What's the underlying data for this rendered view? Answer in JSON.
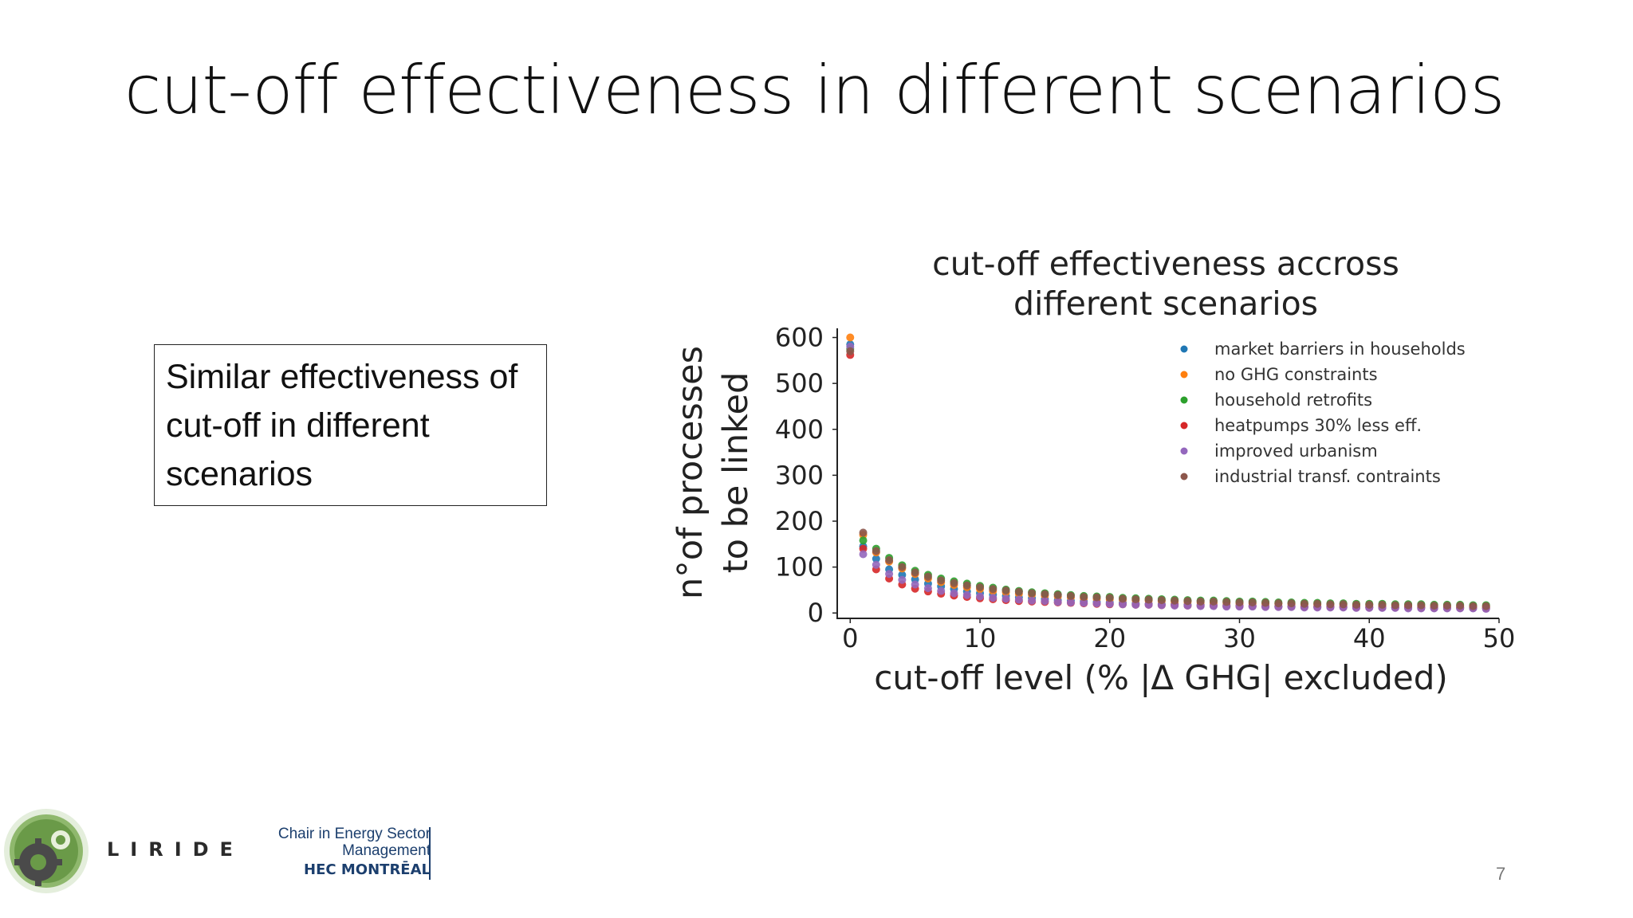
{
  "slide": {
    "title": "cut-off effectiveness in different scenarios",
    "note": "Similar effectiveness of cut-off in different scenarios",
    "page_number": "7"
  },
  "logos": {
    "liride": "LIRIDE",
    "chair_line1": "Chair in Energy Sector",
    "chair_line2": "Management",
    "hec": "HEC MONTRĒAL"
  },
  "chart_data": {
    "type": "scatter",
    "title_lines": [
      "cut-off effectiveness accross",
      "different scenarios"
    ],
    "xlabel": "cut-off level (% |Δ GHG| excluded)",
    "ylabel_lines": [
      "n°of processes",
      "to be linked"
    ],
    "xlim": [
      -1,
      50
    ],
    "ylim": [
      -10,
      620
    ],
    "xticks": [
      0,
      10,
      20,
      30,
      40,
      50
    ],
    "yticks": [
      0,
      100,
      200,
      300,
      400,
      500,
      600
    ],
    "legend_position": "top-right",
    "x": [
      0,
      1,
      2,
      3,
      4,
      5,
      6,
      7,
      8,
      9,
      10,
      11,
      12,
      13,
      14,
      15,
      16,
      17,
      18,
      19,
      20,
      21,
      22,
      23,
      24,
      25,
      26,
      27,
      28,
      29,
      30,
      31,
      32,
      33,
      34,
      35,
      36,
      37,
      38,
      39,
      40,
      41,
      42,
      43,
      44,
      45,
      46,
      47,
      48,
      49
    ],
    "series": [
      {
        "name": "market barriers in households",
        "color": "#1f77b4",
        "values": [
          585,
          145,
          118,
          95,
          83,
          73,
          64,
          58,
          52,
          47,
          43,
          40,
          37,
          34,
          32,
          30,
          28,
          27,
          25,
          24,
          23,
          22,
          21,
          20,
          19,
          19,
          18,
          18,
          17,
          17,
          16,
          16,
          15,
          15,
          15,
          14,
          14,
          14,
          13,
          13,
          13,
          12,
          12,
          12,
          12,
          11,
          11,
          11,
          11,
          11
        ]
      },
      {
        "name": "no GHG constraints",
        "color": "#ff7f0e",
        "values": [
          600,
          170,
          132,
          112,
          97,
          85,
          75,
          67,
          61,
          56,
          52,
          48,
          45,
          42,
          40,
          38,
          36,
          34,
          32,
          31,
          30,
          29,
          28,
          27,
          26,
          25,
          24,
          23,
          22,
          22,
          21,
          21,
          20,
          20,
          19,
          19,
          18,
          18,
          17,
          17,
          17,
          16,
          16,
          16,
          15,
          15,
          15,
          14,
          14,
          14
        ]
      },
      {
        "name": "household retrofits",
        "color": "#2ca02c",
        "values": [
          575,
          158,
          140,
          120,
          104,
          92,
          83,
          75,
          69,
          64,
          59,
          55,
          51,
          48,
          45,
          43,
          41,
          39,
          37,
          36,
          35,
          33,
          32,
          31,
          30,
          29,
          28,
          27,
          27,
          26,
          25,
          25,
          24,
          23,
          23,
          22,
          22,
          21,
          21,
          20,
          20,
          20,
          19,
          19,
          19,
          18,
          18,
          18,
          17,
          17
        ]
      },
      {
        "name": "heatpumps 30% less eff.",
        "color": "#d62728",
        "values": [
          562,
          140,
          95,
          75,
          62,
          53,
          47,
          42,
          38,
          35,
          32,
          30,
          28,
          26,
          25,
          24,
          23,
          22,
          21,
          20,
          19,
          19,
          18,
          18,
          17,
          17,
          16,
          16,
          16,
          15,
          15,
          15,
          14,
          14,
          14,
          13,
          13,
          13,
          13,
          12,
          12,
          12,
          12,
          12,
          11,
          11,
          11,
          11,
          11,
          10
        ]
      },
      {
        "name": "improved urbanism",
        "color": "#9467bd",
        "values": [
          580,
          128,
          105,
          85,
          72,
          62,
          54,
          48,
          43,
          39,
          36,
          33,
          31,
          29,
          27,
          26,
          24,
          23,
          22,
          21,
          20,
          19,
          18,
          18,
          17,
          16,
          16,
          15,
          15,
          14,
          14,
          14,
          13,
          13,
          13,
          12,
          12,
          12,
          12,
          11,
          11,
          11,
          11,
          10,
          10,
          10,
          10,
          10,
          10,
          9
        ]
      },
      {
        "name": "industrial transf. contraints",
        "color": "#8c564b",
        "values": [
          570,
          175,
          135,
          115,
          100,
          88,
          79,
          71,
          65,
          60,
          56,
          52,
          49,
          46,
          43,
          41,
          39,
          37,
          35,
          34,
          33,
          31,
          30,
          29,
          28,
          27,
          26,
          25,
          25,
          24,
          23,
          23,
          22,
          21,
          21,
          20,
          20,
          19,
          19,
          18,
          18,
          18,
          17,
          17,
          17,
          16,
          16,
          16,
          15,
          15
        ]
      }
    ]
  }
}
